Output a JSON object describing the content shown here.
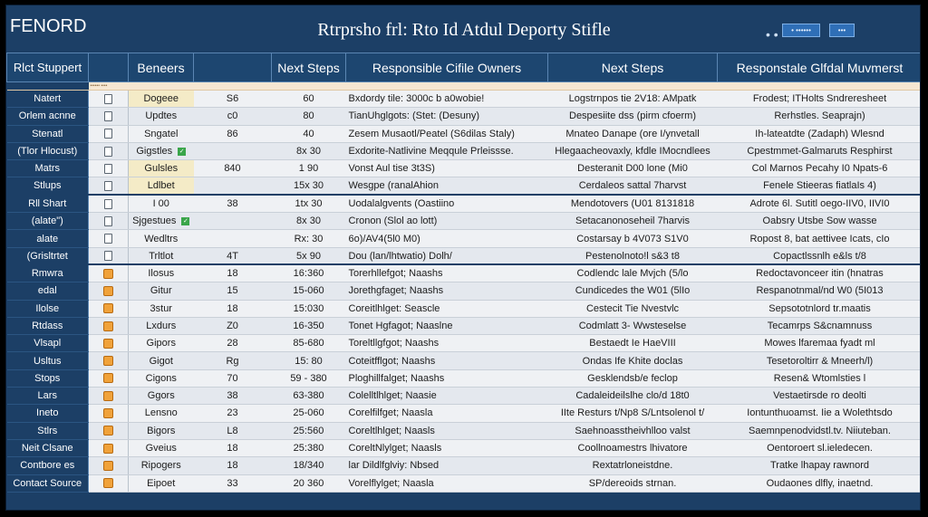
{
  "app": {
    "name": "FENORD",
    "title": "Rtrprsho frl: Rto Id Atdul Deporty Stifle"
  },
  "top_controls": {
    "dots": "• •",
    "btn_a": "• ••••••",
    "btn_b": "•••"
  },
  "columns": [
    "Rlct Stuppert",
    "",
    "Beneers",
    "",
    "Next Steps",
    "Responsible Cifile Owners",
    "Next Steps",
    "Responstale Glfdal Muvmerst"
  ],
  "subhead_label": "•••••• ••••",
  "rows": [
    {
      "stub": "Natert",
      "icon": "box",
      "c2": "Dogeee",
      "c3": "S6",
      "c4": "60",
      "c5": "Bxdordy tile: 3000c b a0wobie!",
      "c6": "Logstrnpos tie 2V18: AMpatk",
      "c7": "Frodest; ITHolts Sndreresheet",
      "hl": true
    },
    {
      "stub": "Orlem acnne",
      "icon": "box",
      "c2": "Updtes",
      "c3": "c0",
      "c4": "80",
      "c5": "TianUhglgots: (Stet: (Desuny)",
      "c6": "Despesiite dss (pirm cfoerm)",
      "c7": "Rerhstles. Seaprajn)"
    },
    {
      "stub": "Stenatl",
      "icon": "box",
      "c2": "Sngatel",
      "c3": "86",
      "c4": "40",
      "c5": "Zesem Musaotl/Peatel (S6dilas Staly)",
      "c6": "Mnateo Danape (ore I/ynvetall",
      "c7": "Ih-lateatdte (Zadaph) Wlesnd"
    },
    {
      "stub": "(Tlor Hlocust)",
      "icon": "box",
      "c2": "Gigstles",
      "check": true,
      "c3": "",
      "c4": "8x 30",
      "c5": "Exdorite-Natlivine Meqqule Prleissse.",
      "c6": "Hlegaacheovaxly, kfdle IMocndlees",
      "c7": "Cpestmmet-Galmaruts Resphirst"
    },
    {
      "stub": "Matrs",
      "icon": "box",
      "c2": "Gulsles",
      "c3": "840",
      "c4": "1    90",
      "c5": "Vonst Aul tise 3t3S)",
      "c6": "Desteranit D00 lone (Mi0",
      "c7": "Col Marnos Pecahy I0 Npats-6",
      "hl": true
    },
    {
      "stub": "Stlups",
      "icon": "box",
      "c2": "Ldlbet",
      "c3": "",
      "c4": "15x 30",
      "c5": "Wesgpe (ranalAhion",
      "c6": "Cerdaleos sattal 7harvst",
      "c7": "Fenele Stieeras fiatlaIs 4)",
      "hl": true,
      "sep": true
    },
    {
      "stub": "Rll Shart",
      "icon": "box",
      "c2": "I 00",
      "c3": "38",
      "c4": "1tx  30",
      "c5": "Uodalalgvents (Oastiino",
      "c6": "Mendotovers (U01 8131818",
      "c7": "Adrote 6l. Sutitl oego-IIV0, IIVI0"
    },
    {
      "stub": "(alate\")",
      "icon": "box",
      "c2": "Sjgestues",
      "check": true,
      "c3": "",
      "c4": "8x  30",
      "c5": "Cronon (Slol ao lott)",
      "c6": "Setacanonoseheil 7harvis",
      "c7": "Oabsry Utsbe Sow wasse"
    },
    {
      "stub": "alate",
      "icon": "box",
      "c2": "Wedltrs",
      "c3": "",
      "c4": "Rx:  30",
      "c5": "6o)/AV4(5l0 M0)",
      "c6": "Costarsay b 4V073 S1V0",
      "c7": "Ropost 8, bat aettivee Icats, cIo"
    },
    {
      "stub": "(Grisltrtet",
      "icon": "box",
      "c2": "Trltlot",
      "c3": "4T",
      "c4": "5x  90",
      "c5": "Dou (lan/lhtwatio) Dolh/",
      "c6": "Pestenolnoto!l s&3 t8",
      "c7": "Copactlssnlh e&ls t/8",
      "sep": true
    },
    {
      "stub": "Rmwra",
      "icon": "orange",
      "c2": "Ilosus",
      "c3": "18",
      "c4": "16:360",
      "c5": "Torerhllefgot; Naashs",
      "c6": "Codlendc lale Mvjch (5/lo",
      "c7": "Redoctavonceer itin (hnatras"
    },
    {
      "stub": "edal",
      "icon": "orange",
      "c2": "Gitur",
      "c3": "15",
      "c4": "15-060",
      "c5": "Jorethgfaget; Naashs",
      "c6": "Cundicedes the W01 (5lIo",
      "c7": "Respanotnmal/nd W0 (5I013"
    },
    {
      "stub": "Ilolse",
      "icon": "orange",
      "c2": "3stur",
      "c3": "18",
      "c4": "15:030",
      "c5": "Coreitlhlget: Seascle",
      "c6": "Cestecit Tie Nvestvlc",
      "c7": "Sepsototnlord tr.maatis"
    },
    {
      "stub": "Rtdass",
      "icon": "orange",
      "c2": "Lxdurs",
      "c3": "Z0",
      "c4": "16-350",
      "c5": "Tonet Hgfagot; Naaslne",
      "c6": "Codmlatt 3- Wwsteselse",
      "c7": "Tecamrps S&cnamnuss"
    },
    {
      "stub": "Vlsapl",
      "icon": "orange",
      "c2": "Gipors",
      "c3": "28",
      "c4": "85-680",
      "c5": "Toreltllgfgot; Naashs",
      "c6": "Bestaedt Ie HaeVIII",
      "c7": "Mowes lfaremaa fyadt ml"
    },
    {
      "stub": "Usltus",
      "icon": "orange",
      "c2": "Gigot",
      "c3": "Rg",
      "c4": "15:  80",
      "c5": "Coteitfflgot; Naashs",
      "c6": "Ondas Ife Khite doclas",
      "c7": "Tesetoroltirr & Mneerh/l)"
    },
    {
      "stub": "Stops",
      "icon": "orange",
      "c2": "Cigons",
      "c3": "70",
      "c4": "59 - 380",
      "c5": "Ploghillfalget; Naashs",
      "c6": "Gesklendsb/e feclop",
      "c7": "Resen& Wtomlsties l"
    },
    {
      "stub": "Lars",
      "icon": "orange",
      "c2": "Ggors",
      "c3": "38",
      "c4": "63-380",
      "c5": "Colelltlhlget; Naasie",
      "c6": "Cadaleideilslhe clo/d 18t0",
      "c7": "Vestaetirsde ro deolti"
    },
    {
      "stub": "Ineto",
      "icon": "orange",
      "c2": "Lensno",
      "c3": "23",
      "c4": "25-060",
      "c5": "Corelfilfget; Naasla",
      "c6": "IIte Resturs t/Np8 S/Lntsolenol t/",
      "c7": "Iontunthuoamst. Iie a Wolethtsdo"
    },
    {
      "stub": "Stlrs",
      "icon": "orange",
      "c2": "Bigors",
      "c3": "L8",
      "c4": "25:560",
      "c5": "Coreltlhlget; Naasls",
      "c6": "Saehnoasstheivhlloo valst",
      "c7": "Saemnpenodvidstl.tv. Niiuteban."
    },
    {
      "stub": "Neit Clsane",
      "icon": "orange",
      "c2": "Gveius",
      "c3": "18",
      "c4": "25:380",
      "c5": "CoreltNlylget; Naasls",
      "c6": "Coollnoamestrs lhivatore",
      "c7": "Oentoroert sl.ieledecen."
    },
    {
      "stub": "Contbore es",
      "icon": "orange",
      "c2": "Ripogers",
      "c3": "18",
      "c4": "18/340",
      "c5": "lar Dildlfglviy: Nbsed",
      "c6": "Rextatrloneistdne.",
      "c7": "Tratke lhapay rawnord"
    },
    {
      "stub": "Contact Source",
      "icon": "orange",
      "c2": "Eipoet",
      "c3": "33",
      "c4": "20 360",
      "c5": "Vorelflylget; Naasla",
      "c6": "SP/dereoids strnan.",
      "c7": "Oudaones dlfly, inaetnd."
    }
  ]
}
